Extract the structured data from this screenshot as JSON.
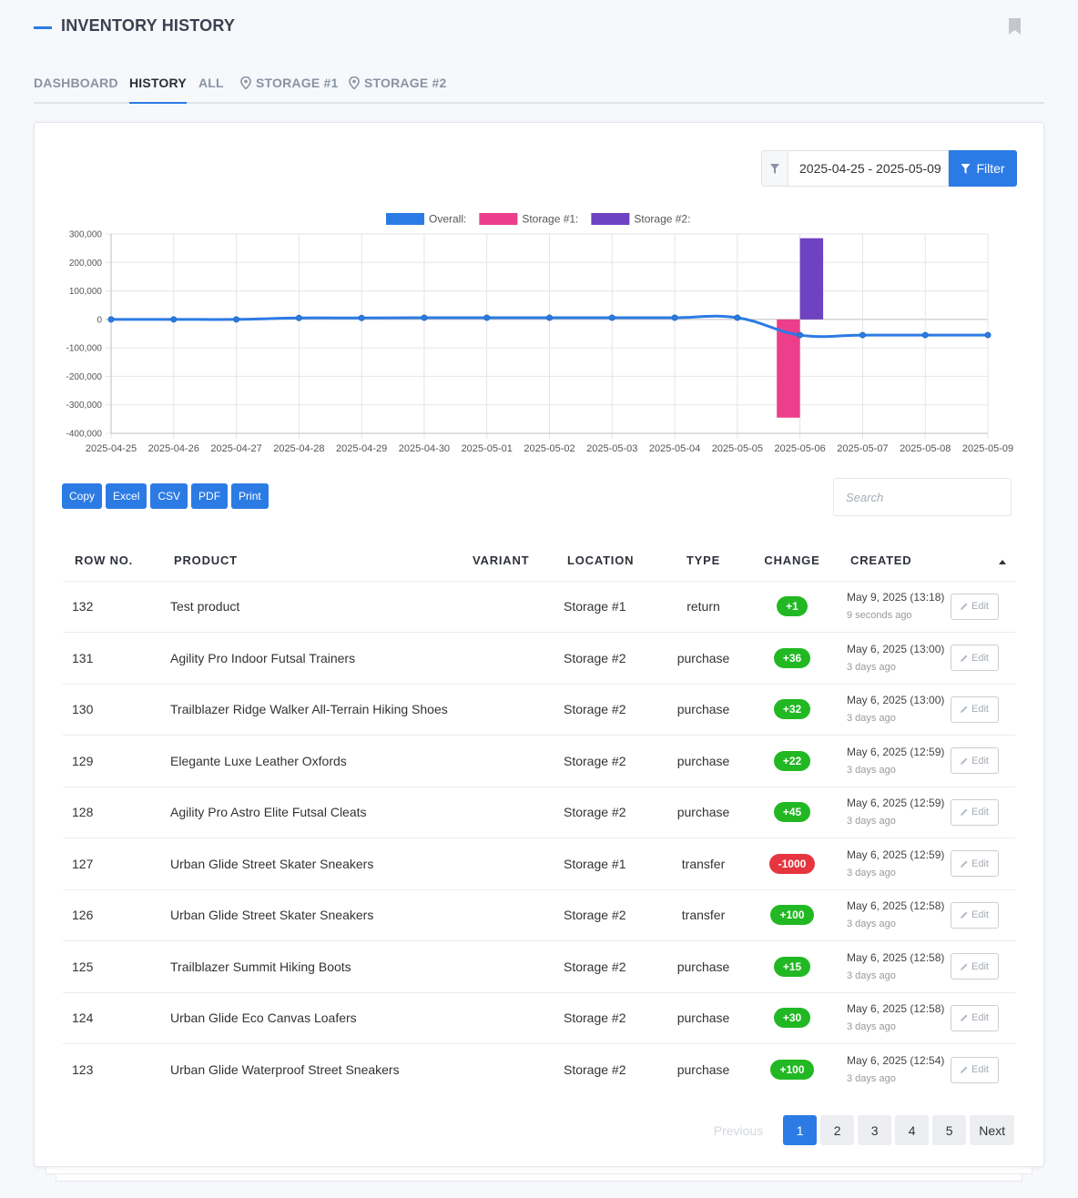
{
  "header": {
    "title": "INVENTORY HISTORY",
    "bookmark_icon": "bookmark-icon"
  },
  "tabs": [
    {
      "label": "DASHBOARD",
      "icon": ""
    },
    {
      "label": "HISTORY",
      "icon": "",
      "active": true
    },
    {
      "label": "ALL",
      "icon": ""
    },
    {
      "label": "STORAGE #1",
      "icon": "map-pin-icon"
    },
    {
      "label": "STORAGE #2",
      "icon": "map-pin-icon"
    }
  ],
  "filter": {
    "date_range": "2025-04-25 - 2025-05-09",
    "button_label": "Filter",
    "icon": "funnel-icon"
  },
  "chart_data": {
    "type": "bar",
    "categories": [
      "2025-04-25",
      "2025-04-26",
      "2025-04-27",
      "2025-04-28",
      "2025-04-29",
      "2025-04-30",
      "2025-05-01",
      "2025-05-02",
      "2025-05-03",
      "2025-05-04",
      "2025-05-05",
      "2025-05-06",
      "2025-05-07",
      "2025-05-08",
      "2025-05-09"
    ],
    "series": [
      {
        "name": "Overall:",
        "type": "line",
        "color": "#2c7be5",
        "values": [
          0,
          0,
          0,
          5000,
          5000,
          6000,
          6000,
          6000,
          6000,
          6000,
          6000,
          -55000,
          -55000,
          -55000,
          -55000
        ]
      },
      {
        "name": "Storage #1:",
        "type": "bar",
        "color": "#ec3e8a",
        "values": [
          0,
          0,
          0,
          0,
          0,
          0,
          0,
          0,
          0,
          0,
          0,
          -345000,
          0,
          0,
          0
        ]
      },
      {
        "name": "Storage #2:",
        "type": "bar",
        "color": "#6f42c1",
        "values": [
          0,
          0,
          0,
          0,
          0,
          0,
          0,
          0,
          0,
          0,
          0,
          285000,
          0,
          0,
          0
        ]
      }
    ],
    "yticks": [
      "300,000",
      "200,000",
      "100,000",
      "0",
      "-100,000",
      "-200,000",
      "-300,000",
      "-400,000"
    ],
    "ylim": [
      -400000,
      300000
    ],
    "grid": true,
    "legend": "top-center"
  },
  "export_buttons": [
    "Copy",
    "Excel",
    "CSV",
    "PDF",
    "Print"
  ],
  "search": {
    "placeholder": "Search"
  },
  "table": {
    "columns": [
      "ROW NO.",
      "PRODUCT",
      "VARIANT",
      "LOCATION",
      "TYPE",
      "CHANGE",
      "CREATED"
    ],
    "edit_label": "Edit",
    "rows": [
      {
        "row_no": "132",
        "product": "Test product",
        "variant": "",
        "location": "Storage #1",
        "type": "return",
        "change": "+1",
        "change_sign": "pos",
        "created": "May 9, 2025 (13:18)",
        "ago": "9 seconds ago"
      },
      {
        "row_no": "131",
        "product": "Agility Pro Indoor Futsal Trainers",
        "variant": "",
        "location": "Storage #2",
        "type": "purchase",
        "change": "+36",
        "change_sign": "pos",
        "created": "May 6, 2025 (13:00)",
        "ago": "3 days ago"
      },
      {
        "row_no": "130",
        "product": "Trailblazer Ridge Walker All-Terrain Hiking Shoes",
        "variant": "",
        "location": "Storage #2",
        "type": "purchase",
        "change": "+32",
        "change_sign": "pos",
        "created": "May 6, 2025 (13:00)",
        "ago": "3 days ago"
      },
      {
        "row_no": "129",
        "product": "Elegante Luxe Leather Oxfords",
        "variant": "",
        "location": "Storage #2",
        "type": "purchase",
        "change": "+22",
        "change_sign": "pos",
        "created": "May 6, 2025 (12:59)",
        "ago": "3 days ago"
      },
      {
        "row_no": "128",
        "product": "Agility Pro Astro Elite Futsal Cleats",
        "variant": "",
        "location": "Storage #2",
        "type": "purchase",
        "change": "+45",
        "change_sign": "pos",
        "created": "May 6, 2025 (12:59)",
        "ago": "3 days ago"
      },
      {
        "row_no": "127",
        "product": "Urban Glide Street Skater Sneakers",
        "variant": "",
        "location": "Storage #1",
        "type": "transfer",
        "change": "-1000",
        "change_sign": "neg",
        "created": "May 6, 2025 (12:59)",
        "ago": "3 days ago"
      },
      {
        "row_no": "126",
        "product": "Urban Glide Street Skater Sneakers",
        "variant": "",
        "location": "Storage #2",
        "type": "transfer",
        "change": "+100",
        "change_sign": "pos",
        "created": "May 6, 2025 (12:58)",
        "ago": "3 days ago"
      },
      {
        "row_no": "125",
        "product": "Trailblazer Summit Hiking Boots",
        "variant": "",
        "location": "Storage #2",
        "type": "purchase",
        "change": "+15",
        "change_sign": "pos",
        "created": "May 6, 2025 (12:58)",
        "ago": "3 days ago"
      },
      {
        "row_no": "124",
        "product": "Urban Glide Eco Canvas Loafers",
        "variant": "",
        "location": "Storage #2",
        "type": "purchase",
        "change": "+30",
        "change_sign": "pos",
        "created": "May 6, 2025 (12:58)",
        "ago": "3 days ago"
      },
      {
        "row_no": "123",
        "product": "Urban Glide Waterproof Street Sneakers",
        "variant": "",
        "location": "Storage #2",
        "type": "purchase",
        "change": "+100",
        "change_sign": "pos",
        "created": "May 6, 2025 (12:54)",
        "ago": "3 days ago"
      }
    ]
  },
  "pagination": {
    "previous": "Previous",
    "pages": [
      "1",
      "2",
      "3",
      "4",
      "5"
    ],
    "current": "1",
    "next": "Next"
  },
  "colors": {
    "accent": "#2c7be5",
    "positive": "#22b823",
    "negative": "#e5353f"
  }
}
